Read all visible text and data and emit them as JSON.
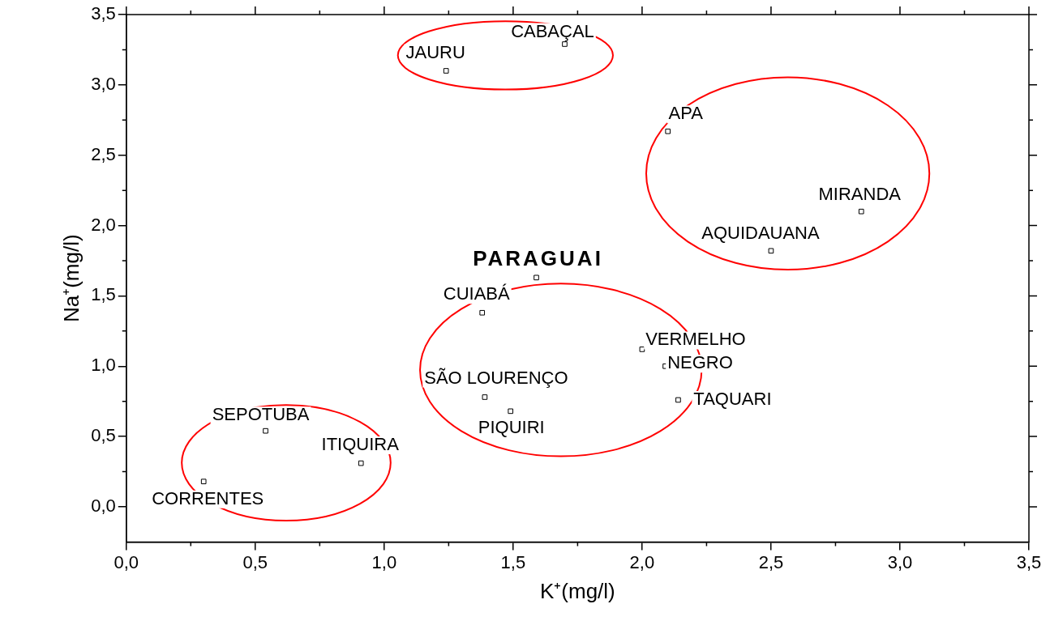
{
  "chart_data": {
    "type": "scatter",
    "xlabel": "K⁺(mg/l)",
    "ylabel": "Na⁺(mg/l)",
    "x": [
      1.24,
      1.7,
      2.1,
      2.85,
      2.5,
      1.59,
      1.38,
      2.0,
      2.09,
      2.14,
      1.39,
      1.49,
      0.54,
      0.91,
      0.3
    ],
    "series": [
      {
        "color": "#000000",
        "values": [
          3.1,
          3.29,
          2.67,
          2.1,
          1.82,
          1.63,
          1.38,
          1.12,
          1.0,
          0.76,
          0.78,
          0.68,
          0.54,
          0.31,
          0.18
        ]
      }
    ],
    "marker": "square",
    "legend": false,
    "grid": false,
    "xlim": [
      0,
      3.5
    ],
    "xticks": [
      {
        "value": 0,
        "label": "0,0"
      },
      {
        "value": 0.5,
        "label": "0,5"
      },
      {
        "value": 1,
        "label": "1,0"
      },
      {
        "value": 1.5,
        "label": "1,5"
      },
      {
        "value": 2,
        "label": "2,0"
      },
      {
        "value": 2.5,
        "label": "2,5"
      },
      {
        "value": 3,
        "label": "3,0"
      },
      {
        "value": 3.5,
        "label": "3,5"
      }
    ],
    "ylim": [
      -0.25,
      3.5
    ],
    "yticks": [
      {
        "value": 0,
        "label": "0,0"
      },
      {
        "value": 0.5,
        "label": "0,5"
      },
      {
        "value": 1,
        "label": "1,0"
      },
      {
        "value": 1.5,
        "label": "1,5"
      },
      {
        "value": 2,
        "label": "2,0"
      },
      {
        "value": 2.5,
        "label": "2,5"
      },
      {
        "value": 3,
        "label": "3,0"
      },
      {
        "value": 3.5,
        "label": "3,5"
      }
    ],
    "annotations": [
      {
        "text": "JAURU",
        "x": 1.24,
        "y": 3.1
      },
      {
        "text": "CABAÇAL",
        "x": 1.7,
        "y": 3.29
      },
      {
        "text": "APA",
        "x": 2.1,
        "y": 2.67
      },
      {
        "text": "MIRANDA",
        "x": 2.85,
        "y": 2.1
      },
      {
        "text": "AQUIDAUANA",
        "x": 2.5,
        "y": 1.82
      },
      {
        "text": "PARAGUAI",
        "x": 1.59,
        "y": 1.63
      },
      {
        "text": "CUIABÁ",
        "x": 1.38,
        "y": 1.38
      },
      {
        "text": "VERMELHO",
        "x": 2.0,
        "y": 1.12
      },
      {
        "text": "NEGRO",
        "x": 2.09,
        "y": 1.0
      },
      {
        "text": "TAQUARI",
        "x": 2.14,
        "y": 0.76
      },
      {
        "text": "SÃO LOURENÇO",
        "x": 1.39,
        "y": 0.78
      },
      {
        "text": "PIQUIRI",
        "x": 1.49,
        "y": 0.68
      },
      {
        "text": "SEPOTUBA",
        "x": 0.54,
        "y": 0.54
      },
      {
        "text": "ITIQUIRA",
        "x": 0.91,
        "y": 0.31
      },
      {
        "text": "CORRENTES",
        "x": 0.3,
        "y": 0.18
      }
    ]
  }
}
